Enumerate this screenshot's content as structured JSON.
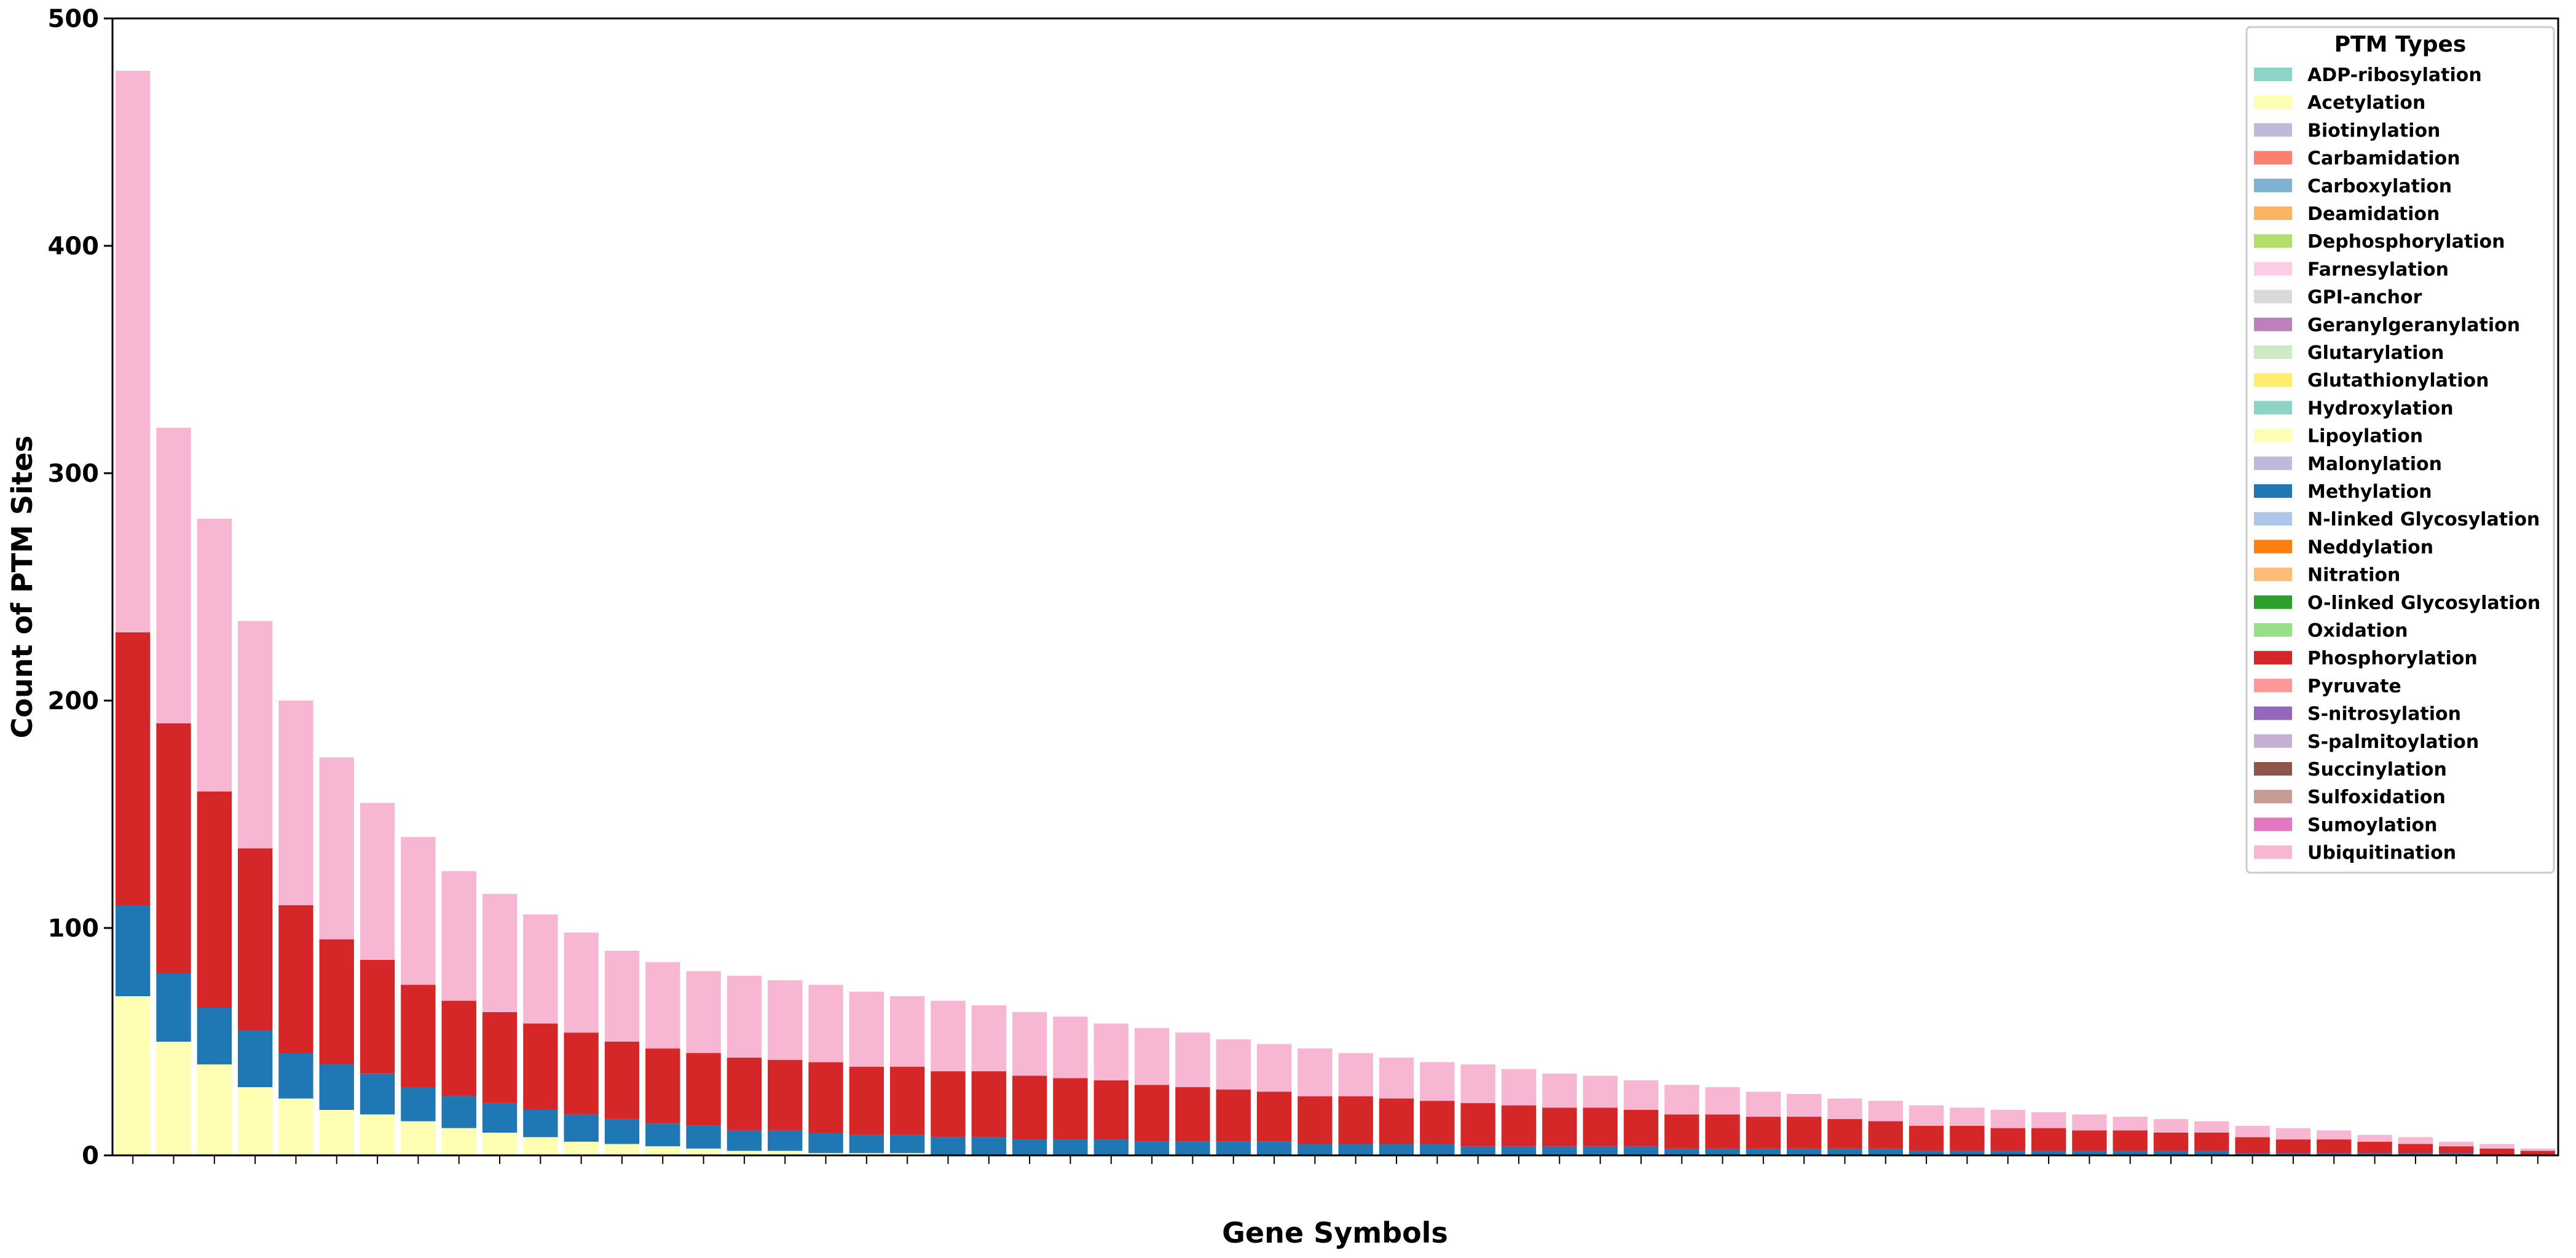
{
  "chart_data": {
    "type": "bar",
    "stacked": true,
    "title": "",
    "xlabel": "Gene Symbols",
    "ylabel": "Count of PTM Sites",
    "ylim": [
      0,
      500
    ],
    "yticks": [
      0,
      100,
      200,
      300,
      400,
      500
    ],
    "grid": false,
    "legend": {
      "title": "PTM Types",
      "placement": "top-right",
      "entries": [
        {
          "name": "ADP-ribosylation",
          "color": "#8dd3c7"
        },
        {
          "name": "Acetylation",
          "color": "#ffffb3"
        },
        {
          "name": "Biotinylation",
          "color": "#bebada"
        },
        {
          "name": "Carbamidation",
          "color": "#fb8072"
        },
        {
          "name": "Carboxylation",
          "color": "#80b1d3"
        },
        {
          "name": "Deamidation",
          "color": "#fdb462"
        },
        {
          "name": "Dephosphorylation",
          "color": "#b3de69"
        },
        {
          "name": "Farnesylation",
          "color": "#fccde5"
        },
        {
          "name": "GPI-anchor",
          "color": "#d9d9d9"
        },
        {
          "name": "Geranylgeranylation",
          "color": "#bc80bd"
        },
        {
          "name": "Glutarylation",
          "color": "#ccebc5"
        },
        {
          "name": "Glutathionylation",
          "color": "#ffed6f"
        },
        {
          "name": "Hydroxylation",
          "color": "#8dd3c7"
        },
        {
          "name": "Lipoylation",
          "color": "#ffffb3"
        },
        {
          "name": "Malonylation",
          "color": "#bebada"
        },
        {
          "name": "Methylation",
          "color": "#1f77b4"
        },
        {
          "name": "N-linked Glycosylation",
          "color": "#aec7e8"
        },
        {
          "name": "Neddylation",
          "color": "#ff7f0e"
        },
        {
          "name": "Nitration",
          "color": "#ffbb78"
        },
        {
          "name": "O-linked Glycosylation",
          "color": "#2ca02c"
        },
        {
          "name": "Oxidation",
          "color": "#98df8a"
        },
        {
          "name": "Phosphorylation",
          "color": "#d62728"
        },
        {
          "name": "Pyruvate",
          "color": "#ff9896"
        },
        {
          "name": "S-nitrosylation",
          "color": "#9467bd"
        },
        {
          "name": "S-palmitoylation",
          "color": "#c5b0d5"
        },
        {
          "name": "Succinylation",
          "color": "#8c564b"
        },
        {
          "name": "Sulfoxidation",
          "color": "#c49c94"
        },
        {
          "name": "Sumoylation",
          "color": "#e377c2"
        },
        {
          "name": "Ubiquitination",
          "color": "#f7b6d2"
        }
      ]
    },
    "series": [
      {
        "name": "Acetylation",
        "color": "#ffffb3",
        "values": [
          70,
          50,
          40,
          30,
          25,
          20,
          18,
          15,
          12,
          10,
          8,
          6,
          5,
          4,
          3,
          2,
          2,
          1,
          1,
          1,
          0,
          0,
          0,
          0,
          0,
          0,
          0,
          0,
          0,
          0,
          0,
          0,
          0,
          0,
          0,
          0,
          0,
          0,
          0,
          0,
          0,
          0,
          0,
          0,
          0,
          0,
          0,
          0,
          0,
          0,
          0,
          0,
          0,
          0,
          0,
          0,
          0,
          0,
          0,
          0
        ]
      },
      {
        "name": "Methylation",
        "color": "#1f77b4",
        "values": [
          40,
          30,
          25,
          25,
          20,
          20,
          18,
          15,
          14,
          13,
          12,
          12,
          11,
          10,
          10,
          9,
          9,
          9,
          8,
          8,
          8,
          8,
          7,
          7,
          7,
          6,
          6,
          6,
          6,
          5,
          5,
          5,
          5,
          4,
          4,
          4,
          4,
          4,
          3,
          3,
          3,
          3,
          3,
          3,
          2,
          2,
          2,
          2,
          2,
          2,
          2,
          2,
          1,
          1,
          1,
          1,
          1,
          1,
          0,
          0
        ]
      },
      {
        "name": "Phosphorylation",
        "color": "#d62728",
        "values": [
          120,
          110,
          95,
          80,
          65,
          55,
          50,
          45,
          42,
          40,
          38,
          36,
          34,
          33,
          32,
          32,
          31,
          31,
          30,
          30,
          29,
          29,
          28,
          27,
          26,
          25,
          24,
          23,
          22,
          21,
          21,
          20,
          19,
          19,
          18,
          17,
          17,
          16,
          15,
          15,
          14,
          14,
          13,
          12,
          11,
          11,
          10,
          10,
          9,
          9,
          8,
          8,
          7,
          6,
          6,
          5,
          4,
          3,
          3,
          2
        ]
      },
      {
        "name": "Ubiquitination",
        "color": "#f7b6d2",
        "values": [
          247,
          130,
          120,
          100,
          90,
          80,
          69,
          65,
          57,
          52,
          48,
          44,
          40,
          38,
          36,
          36,
          35,
          34,
          33,
          31,
          31,
          29,
          28,
          27,
          25,
          25,
          24,
          22,
          21,
          21,
          19,
          18,
          17,
          17,
          16,
          15,
          14,
          13,
          13,
          12,
          11,
          10,
          9,
          9,
          9,
          8,
          8,
          7,
          7,
          6,
          6,
          5,
          5,
          5,
          4,
          3,
          3,
          2,
          2,
          1
        ]
      }
    ]
  }
}
